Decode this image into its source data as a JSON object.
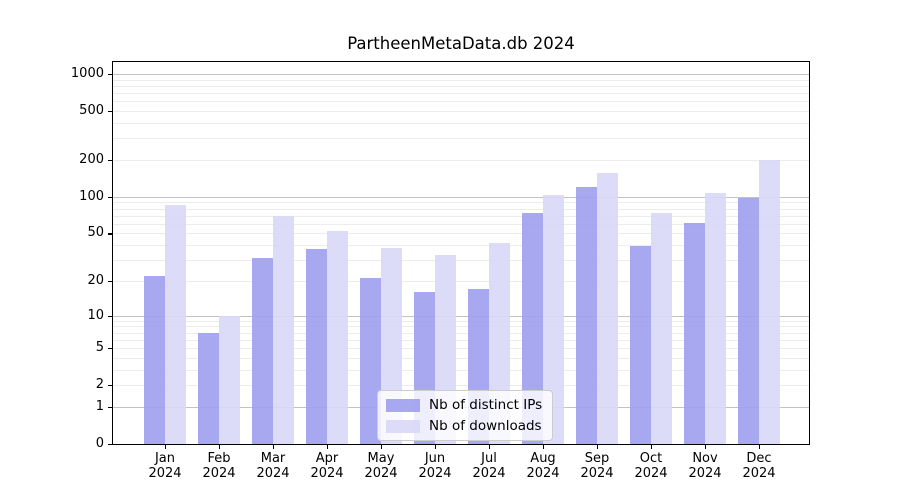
{
  "chart_data": {
    "type": "bar",
    "title": "PartheenMetaData.db 2024",
    "categories": [
      "Jan 2024",
      "Feb 2024",
      "Mar 2024",
      "Apr 2024",
      "May 2024",
      "Jun 2024",
      "Jul 2024",
      "Aug 2024",
      "Sep 2024",
      "Oct 2024",
      "Nov 2024",
      "Dec 2024"
    ],
    "series": [
      {
        "name": "Nb of distinct IPs",
        "color": "#9e9ef0",
        "values": [
          22,
          7,
          31,
          37,
          21,
          16,
          17,
          74,
          120,
          39,
          61,
          97
        ]
      },
      {
        "name": "Nb of downloads",
        "color": "#d8d8f7",
        "values": [
          85,
          10,
          70,
          52,
          38,
          33,
          42,
          103,
          156,
          74,
          107,
          200
        ]
      }
    ],
    "xlabel": "",
    "ylabel": "",
    "yscale": "log1p",
    "ylim": [
      0,
      1250
    ],
    "yticks": [
      0,
      1,
      2,
      5,
      10,
      20,
      50,
      100,
      200,
      500,
      1000
    ],
    "minor_gridlines": [
      2,
      3,
      4,
      5,
      6,
      7,
      8,
      9,
      20,
      30,
      40,
      50,
      60,
      70,
      80,
      90,
      200,
      300,
      400,
      500,
      600,
      700,
      800,
      900
    ],
    "major_gridlines": [
      1,
      10,
      100,
      1000
    ],
    "legend_position": "lower center",
    "grid": true
  }
}
